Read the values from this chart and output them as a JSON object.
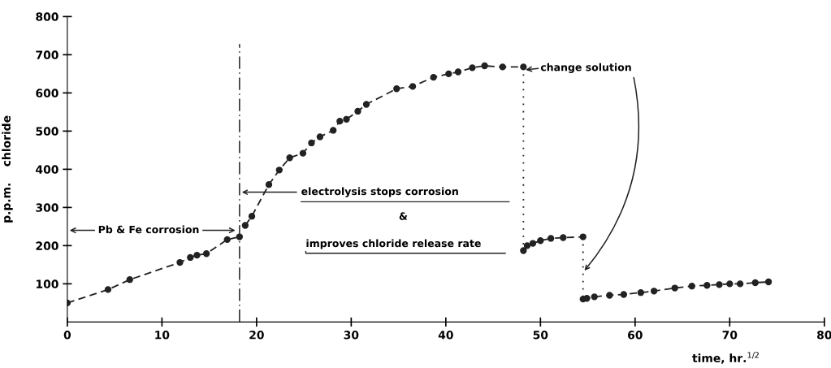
{
  "chart_data": {
    "type": "line",
    "xlabel": "time, hr.$^{1/2}$",
    "ylabel": "p.p.m.    chloride",
    "xlim": [
      0,
      80
    ],
    "ylim": [
      0,
      800
    ],
    "xticks": [
      0,
      10,
      20,
      30,
      40,
      50,
      60,
      70,
      80
    ],
    "yticks": [
      100,
      200,
      300,
      400,
      500,
      600,
      700,
      800
    ],
    "grid": false,
    "marker": "circle",
    "line_style": "dashed",
    "series": [
      {
        "color": "#222222",
        "x": [
          0,
          4.3,
          6.6,
          11.9,
          13.0,
          13.7,
          14.7,
          16.9,
          18.2
        ],
        "values": [
          50,
          85,
          111,
          156,
          169,
          175,
          179,
          216,
          223
        ]
      },
      {
        "color": "#222222",
        "x": [
          18.8,
          19.5,
          21.3,
          22.4,
          23.5,
          24.9,
          25.8,
          26.7,
          28.1,
          28.8,
          29.5,
          30.7,
          31.6,
          34.8,
          36.5,
          38.7,
          40.3,
          41.3,
          42.8,
          44.1,
          46.0,
          48.2
        ],
        "values": [
          253,
          277,
          360,
          398,
          430,
          442,
          469,
          485,
          502,
          526,
          531,
          552,
          570,
          611,
          617,
          641,
          650,
          655,
          666,
          671,
          668,
          668
        ]
      },
      {
        "type": "line",
        "color": "#222222",
        "marker": "none",
        "line_style": "dotted",
        "x": [
          48.2,
          48.2
        ],
        "values": [
          668,
          187
        ]
      },
      {
        "color": "#222222",
        "x": [
          48.2,
          48.6,
          49.2,
          50.0,
          51.1,
          52.4,
          54.5
        ],
        "values": [
          187,
          200,
          206,
          213,
          219,
          221,
          223
        ]
      },
      {
        "type": "line",
        "color": "#222222",
        "marker": "none",
        "line_style": "dotted",
        "x": [
          54.5,
          54.5
        ],
        "values": [
          223,
          60
        ]
      },
      {
        "color": "#222222",
        "x": [
          54.5,
          54.9,
          55.7,
          57.3,
          58.8,
          60.6,
          62.0,
          64.2,
          66.0,
          67.6,
          68.9,
          70.0,
          71.1,
          72.7,
          74.1
        ],
        "values": [
          60,
          62,
          66,
          70,
          72,
          77,
          81,
          89,
          94,
          96,
          98,
          100,
          100,
          103,
          105
        ]
      }
    ],
    "ref_lines": [
      {
        "axis": "x",
        "value": 18.2,
        "color": "#222222",
        "line_style": "dashdot"
      }
    ],
    "annotations": [
      "Pb & Fe corrosion",
      {
        "text": "electrolysis stops corrosion",
        "x": 18.2,
        "y": 340
      },
      "&",
      "improves chloride release rate",
      {
        "text": "change solution",
        "x": 48.2,
        "y": 660
      }
    ]
  }
}
